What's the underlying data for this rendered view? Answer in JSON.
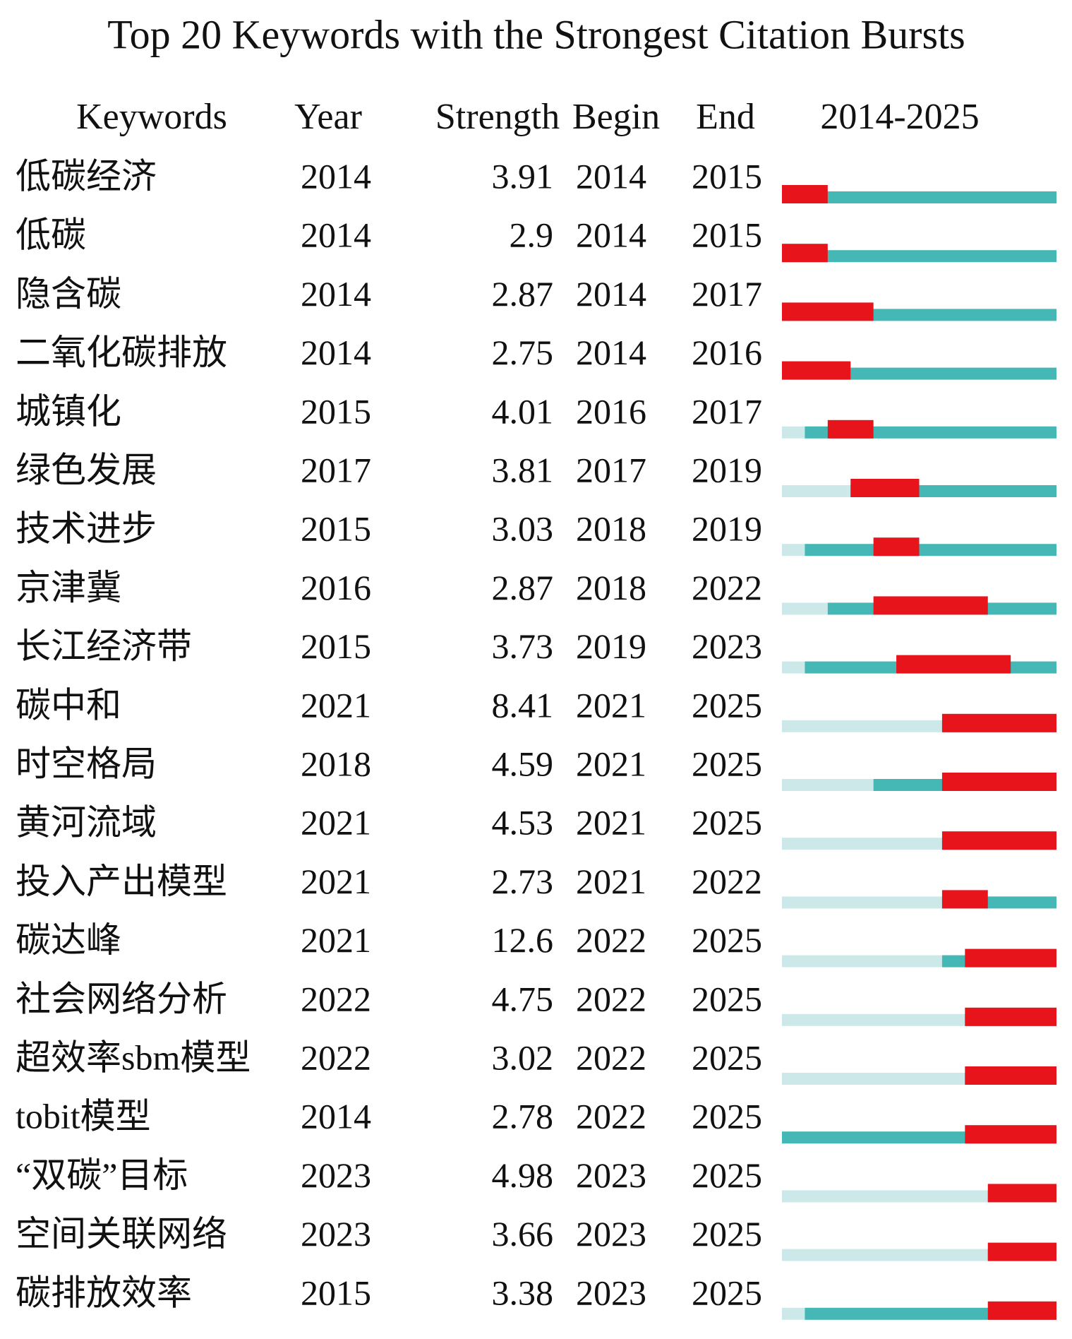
{
  "header": {
    "title": "Top 20 Keywords with the Strongest Citation Bursts"
  },
  "table": {
    "columns": [
      "Keywords",
      "Year",
      "Strength",
      "Begin",
      "End",
      "2014-2025"
    ],
    "timeline": {
      "xlim": [
        2014,
        2025
      ]
    },
    "rows": [
      {
        "keyword": "低碳经济",
        "year": 2014,
        "strength": 3.91,
        "begin": 2014,
        "end": 2015
      },
      {
        "keyword": "低碳",
        "year": 2014,
        "strength": 2.9,
        "begin": 2014,
        "end": 2015
      },
      {
        "keyword": "隐含碳",
        "year": 2014,
        "strength": 2.87,
        "begin": 2014,
        "end": 2017
      },
      {
        "keyword": "二氧化碳排放",
        "year": 2014,
        "strength": 2.75,
        "begin": 2014,
        "end": 2016
      },
      {
        "keyword": "城镇化",
        "year": 2015,
        "strength": 4.01,
        "begin": 2016,
        "end": 2017
      },
      {
        "keyword": "绿色发展",
        "year": 2017,
        "strength": 3.81,
        "begin": 2017,
        "end": 2019
      },
      {
        "keyword": "技术进步",
        "year": 2015,
        "strength": 3.03,
        "begin": 2018,
        "end": 2019
      },
      {
        "keyword": "京津冀",
        "year": 2016,
        "strength": 2.87,
        "begin": 2018,
        "end": 2022
      },
      {
        "keyword": "长江经济带",
        "year": 2015,
        "strength": 3.73,
        "begin": 2019,
        "end": 2023
      },
      {
        "keyword": "碳中和",
        "year": 2021,
        "strength": 8.41,
        "begin": 2021,
        "end": 2025
      },
      {
        "keyword": "时空格局",
        "year": 2018,
        "strength": 4.59,
        "begin": 2021,
        "end": 2025
      },
      {
        "keyword": "黄河流域",
        "year": 2021,
        "strength": 4.53,
        "begin": 2021,
        "end": 2025
      },
      {
        "keyword": "投入产出模型",
        "year": 2021,
        "strength": 2.73,
        "begin": 2021,
        "end": 2022
      },
      {
        "keyword": "碳达峰",
        "year": 2021,
        "strength": 12.6,
        "begin": 2022,
        "end": 2025
      },
      {
        "keyword": "社会网络分析",
        "year": 2022,
        "strength": 4.75,
        "begin": 2022,
        "end": 2025
      },
      {
        "keyword": "超效率sbm模型",
        "year": 2022,
        "strength": 3.02,
        "begin": 2022,
        "end": 2025
      },
      {
        "keyword": "tobit模型",
        "year": 2014,
        "strength": 2.78,
        "begin": 2022,
        "end": 2025
      },
      {
        "keyword": "“双碳”目标",
        "year": 2023,
        "strength": 4.98,
        "begin": 2023,
        "end": 2025
      },
      {
        "keyword": "空间关联网络",
        "year": 2023,
        "strength": 3.66,
        "begin": 2023,
        "end": 2025
      },
      {
        "keyword": "碳排放效率",
        "year": 2015,
        "strength": 3.38,
        "begin": 2023,
        "end": 2025
      }
    ]
  }
}
